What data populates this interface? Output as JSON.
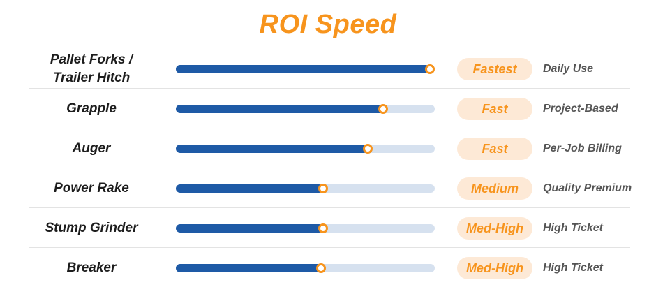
{
  "title": "ROI Speed",
  "colors": {
    "accent": "#f7941d",
    "bar_fill": "#1e5aa6",
    "bar_track": "#d6e1ef",
    "badge_bg": "#fde9d6",
    "label_text": "#1d1d1d",
    "note_text": "#555555"
  },
  "chart_data": {
    "type": "bar",
    "orientation": "horizontal",
    "title": "ROI Speed",
    "categories": [
      "Pallet Forks /\nTrailer Hitch",
      "Grapple",
      "Auger",
      "Power Rake",
      "Stump Grinder",
      "Breaker"
    ],
    "values": [
      0.98,
      0.8,
      0.74,
      0.57,
      0.57,
      0.56
    ],
    "value_scale": "fraction of full bar",
    "ratings": [
      "Fastest",
      "Fast",
      "Fast",
      "Medium",
      "Med-High",
      "Med-High"
    ],
    "notes": [
      "Daily Use",
      "Project-Based",
      "Per-Job Billing",
      "Quality Premium",
      "High Ticket",
      "High Ticket"
    ]
  }
}
